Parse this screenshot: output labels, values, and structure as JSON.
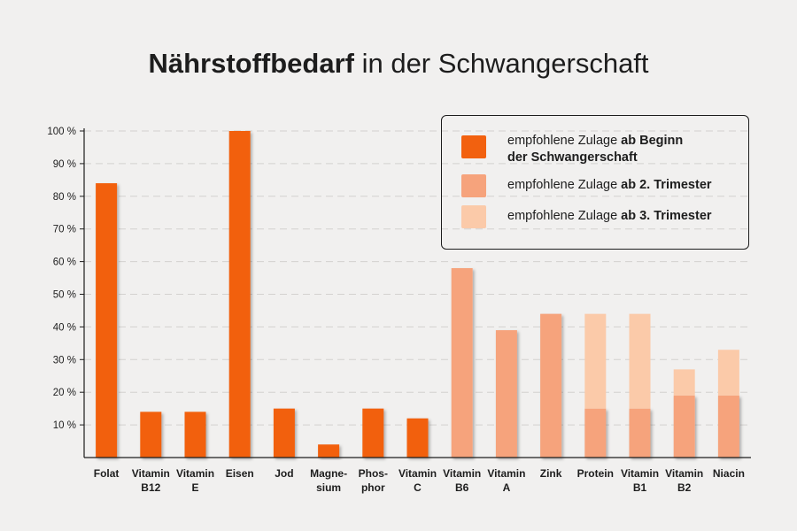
{
  "chart_data": {
    "type": "bar",
    "title_bold": "Nährstoffbedarf",
    "title_rest": " in der Schwangerschaft",
    "ylim": [
      0,
      100
    ],
    "y_ticks": [
      {
        "value": 10,
        "label": "10 %"
      },
      {
        "value": 20,
        "label": "20 %"
      },
      {
        "value": 30,
        "label": "30 %"
      },
      {
        "value": 40,
        "label": "40 %"
      },
      {
        "value": 50,
        "label": "50 %"
      },
      {
        "value": 60,
        "label": "60 %"
      },
      {
        "value": 70,
        "label": "70 %"
      },
      {
        "value": 80,
        "label": "80 %"
      },
      {
        "value": 90,
        "label": "90 %"
      },
      {
        "value": 100,
        "label": "100 %"
      }
    ],
    "grid": true,
    "legend_position": "top-right",
    "categories": [
      [
        "Folat"
      ],
      [
        "Vitamin",
        "B12"
      ],
      [
        "Vitamin",
        "E"
      ],
      [
        "Eisen"
      ],
      [
        "Jod"
      ],
      [
        "Magne-",
        "sium"
      ],
      [
        "Phos-",
        "phor"
      ],
      [
        "Vitamin",
        "C"
      ],
      [
        "Vitamin",
        "B6"
      ],
      [
        "Vitamin",
        "A"
      ],
      [
        "Zink"
      ],
      [
        "Protein"
      ],
      [
        "Vitamin",
        "B1"
      ],
      [
        "Vitamin",
        "B2"
      ],
      [
        "Niacin"
      ]
    ],
    "series": [
      {
        "name": "empfohlene Zulage ab Beginn der Schwangerschaft",
        "legend_normal": "empfohlene Zulage ",
        "legend_bold_1": "ab Beginn",
        "legend_bold_2": "der Schwangerschaft",
        "color": "#f2610f",
        "values": [
          84,
          14,
          14,
          100,
          15,
          4,
          15,
          12,
          0,
          0,
          0,
          0,
          0,
          0,
          0
        ]
      },
      {
        "name": "empfohlene Zulage ab 2. Trimester",
        "legend_normal": "empfohlene Zulage ",
        "legend_bold": "ab 2. Trimester",
        "color": "#f6a37c",
        "values": [
          0,
          0,
          0,
          0,
          0,
          0,
          0,
          0,
          58,
          39,
          44,
          15,
          15,
          19,
          19
        ]
      },
      {
        "name": "empfohlene Zulage ab 3. Trimester",
        "legend_normal": "empfohlene Zulage ",
        "legend_bold": "ab 3. Trimester",
        "color": "#fbcaa9",
        "values": [
          0,
          0,
          0,
          0,
          0,
          0,
          0,
          0,
          0,
          0,
          0,
          29,
          29,
          8,
          14
        ]
      }
    ]
  }
}
